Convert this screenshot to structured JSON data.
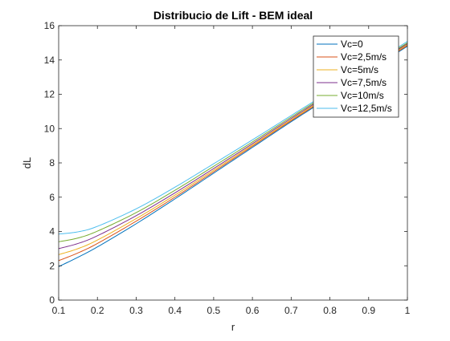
{
  "chart_data": {
    "type": "line",
    "title": "Distribucio de Lift - BEM ideal",
    "xlabel": "r",
    "ylabel": "dL",
    "xlim": [
      0.1,
      1
    ],
    "ylim": [
      0,
      16
    ],
    "xticks": [
      0.1,
      0.2,
      0.3,
      0.4,
      0.5,
      0.6,
      0.7,
      0.8,
      0.9,
      1
    ],
    "xtick_labels": [
      "0.1",
      "0.2",
      "0.3",
      "0.4",
      "0.5",
      "0.6",
      "0.7",
      "0.8",
      "0.9",
      "1"
    ],
    "yticks": [
      0,
      2,
      4,
      6,
      8,
      10,
      12,
      14,
      16
    ],
    "ytick_labels": [
      "0",
      "2",
      "4",
      "6",
      "8",
      "10",
      "12",
      "14",
      "16"
    ],
    "grid": false,
    "legend_position": "top-right",
    "x": [
      0.1,
      0.15,
      0.2,
      0.3,
      0.4,
      0.5,
      0.6,
      0.7,
      0.8,
      0.9,
      1.0
    ],
    "series": [
      {
        "name": "Vc=0",
        "color": "#0072bd",
        "values": [
          1.95,
          2.5,
          3.1,
          4.45,
          5.9,
          7.4,
          8.9,
          10.4,
          11.85,
          13.35,
          14.8
        ]
      },
      {
        "name": "Vc=2,5m/s",
        "color": "#d95319",
        "values": [
          2.3,
          2.75,
          3.3,
          4.6,
          6.0,
          7.48,
          8.97,
          10.46,
          11.9,
          13.4,
          14.85
        ]
      },
      {
        "name": "Vc=5m/s",
        "color": "#edb120",
        "values": [
          2.65,
          3.0,
          3.5,
          4.75,
          6.12,
          7.57,
          9.04,
          10.52,
          11.97,
          13.46,
          14.9
        ]
      },
      {
        "name": "Vc=7,5m/s",
        "color": "#7e2f8e",
        "values": [
          3.0,
          3.3,
          3.75,
          4.92,
          6.25,
          7.67,
          9.12,
          10.59,
          12.03,
          13.52,
          14.95
        ]
      },
      {
        "name": "Vc=10m/s",
        "color": "#77ac30",
        "values": [
          3.4,
          3.62,
          4.02,
          5.1,
          6.4,
          7.8,
          9.22,
          10.67,
          12.1,
          13.58,
          15.0
        ]
      },
      {
        "name": "Vc=12,5m/s",
        "color": "#4dbeee",
        "values": [
          3.85,
          3.98,
          4.3,
          5.32,
          6.58,
          7.95,
          9.34,
          10.76,
          12.18,
          13.66,
          15.08
        ]
      }
    ]
  }
}
